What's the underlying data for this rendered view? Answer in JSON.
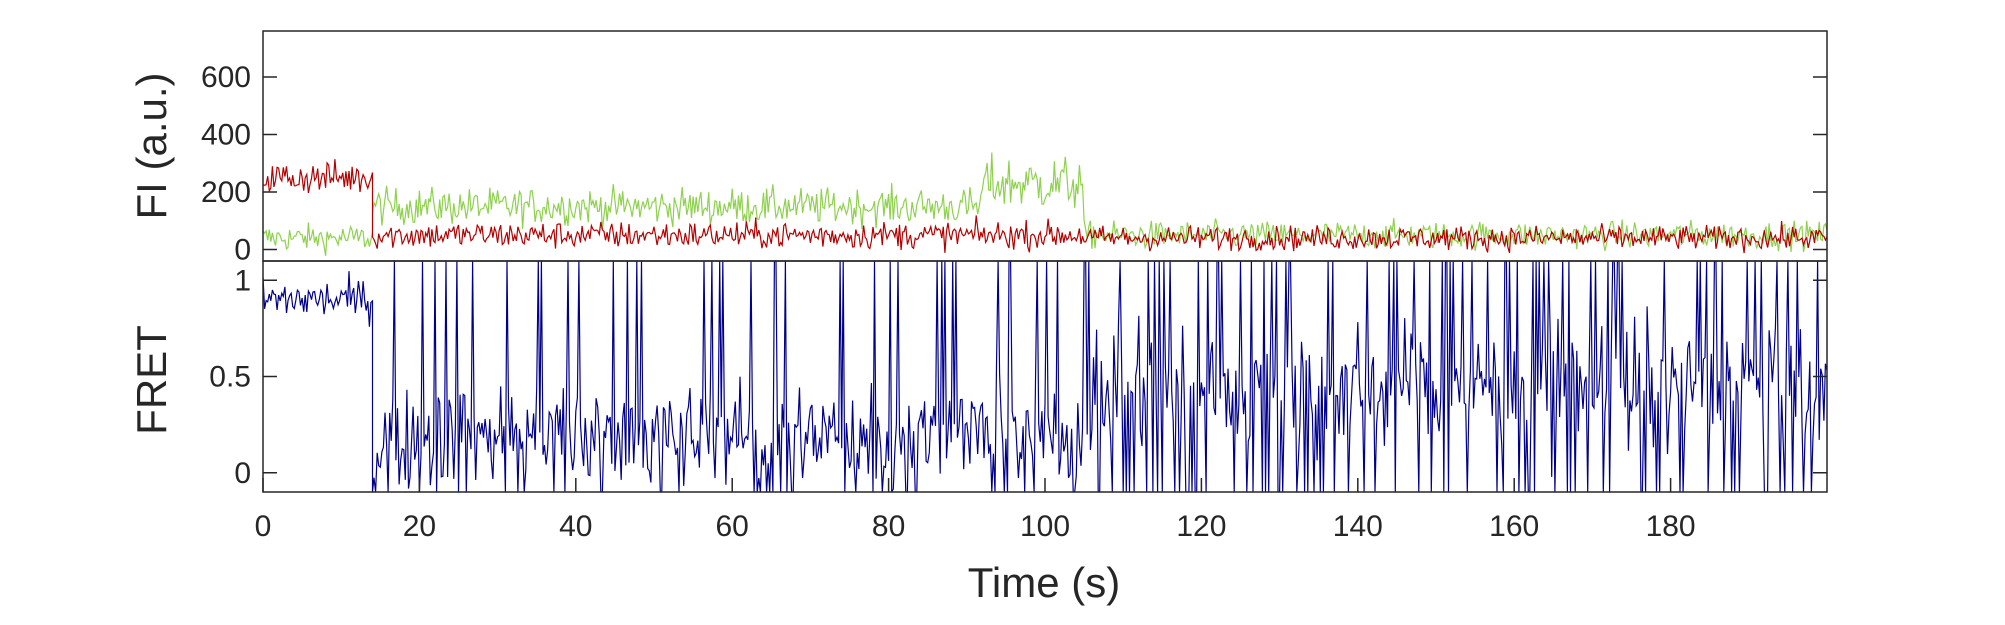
{
  "chart_data": [
    {
      "type": "line",
      "panel": "intensity",
      "ylabel": "FI (a.u.)",
      "xlim": [
        0,
        200
      ],
      "ylim": [
        -40,
        760
      ],
      "yticks": [
        0,
        200,
        400,
        600
      ],
      "grid": false,
      "legend": "none",
      "series": [
        {
          "color": "#8fd14f",
          "segments": [
            {
              "x": [
                0,
                14
              ],
              "mean": 40,
              "noise": 45
            },
            {
              "x": [
                14,
                92
              ],
              "mean": 150,
              "noise": 60
            },
            {
              "x": [
                92,
                105
              ],
              "mean": 230,
              "noise": 90
            },
            {
              "x": [
                105,
                200
              ],
              "mean": 50,
              "noise": 45
            }
          ]
        },
        {
          "color": "#b30000",
          "segments": [
            {
              "x": [
                0,
                14
              ],
              "mean": 250,
              "noise": 55
            },
            {
              "x": [
                14,
                105
              ],
              "mean": 50,
              "noise": 45
            },
            {
              "x": [
                105,
                200
              ],
              "mean": 40,
              "noise": 40
            }
          ]
        }
      ]
    },
    {
      "type": "line",
      "panel": "fret",
      "ylabel": "FRET",
      "xlabel": "Time (s)",
      "xlim": [
        0,
        200
      ],
      "ylim": [
        -0.1,
        1.1
      ],
      "yticks": [
        0,
        0.5,
        1
      ],
      "yticklabels": [
        "0",
        "0.5",
        "1"
      ],
      "xticks": [
        0,
        20,
        40,
        60,
        80,
        100,
        120,
        140,
        160,
        180
      ],
      "grid": false,
      "legend": "none",
      "series": [
        {
          "color": "#00008b",
          "segments": [
            {
              "x": [
                0,
                14
              ],
              "mean": 0.9,
              "noise": 0.1
            },
            {
              "x": [
                14,
                105
              ],
              "mean": 0.2,
              "noise": 0.25,
              "spike_prob": 0.18
            },
            {
              "x": [
                105,
                200
              ],
              "mean": 0.45,
              "noise": 0.3,
              "spike_prob": 0.3
            }
          ]
        }
      ]
    }
  ]
}
